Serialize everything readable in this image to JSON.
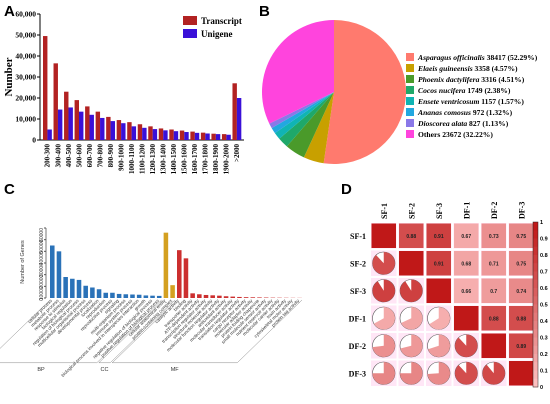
{
  "panel_letters": [
    "A",
    "B",
    "C",
    "D"
  ],
  "chart_data": [
    {
      "panel": "A",
      "type": "bar",
      "ylabel": "Number",
      "ylim": [
        0,
        60000
      ],
      "yticks": [
        "0",
        "10,000",
        "20,000",
        "30,000",
        "40,000",
        "50,000",
        "60,000"
      ],
      "legend_position": "top-right",
      "categories": [
        "200-300",
        "300-400",
        "400-500",
        "500-600",
        "600-700",
        "700-800",
        "800-900",
        "900-1000",
        "1000-1100",
        "1100-1200",
        "1200-1300",
        "1300-1400",
        "1400-1500",
        "1500-1600",
        "1600-1700",
        "1700-1800",
        "1800-1900",
        "1900-2000",
        ">2000"
      ],
      "series": [
        {
          "name": "Transcript",
          "color": "#b22222",
          "values": [
            49500,
            36500,
            23000,
            19000,
            16000,
            13500,
            11000,
            9500,
            8500,
            7500,
            6500,
            5500,
            5000,
            4500,
            4000,
            3500,
            3000,
            2800,
            27000
          ]
        },
        {
          "name": "Unigene",
          "color": "#3a10d8",
          "values": [
            5000,
            14500,
            15500,
            13500,
            12000,
            10500,
            9000,
            8000,
            6500,
            5800,
            5200,
            4600,
            4200,
            3800,
            3400,
            3100,
            2800,
            2500,
            20000
          ]
        }
      ]
    },
    {
      "panel": "B",
      "type": "pie",
      "slices": [
        {
          "species": "Asparagus officinalis",
          "count": "38417",
          "pct": "(52.29%)",
          "value": 52.29,
          "color": "#ff7a6e"
        },
        {
          "species": "Elaeis guineensis",
          "count": "3358",
          "pct": "(4.57%)",
          "value": 4.57,
          "color": "#c8a000"
        },
        {
          "species": "Phoenix dactylifera",
          "count": "3316",
          "pct": "(4.51%)",
          "value": 4.51,
          "color": "#4a9a2a"
        },
        {
          "species": "Cocos nucifera",
          "count": "1749",
          "pct": "(2.38%)",
          "value": 2.38,
          "color": "#1fa86a"
        },
        {
          "species": "Ensete ventricosum",
          "count": "1157",
          "pct": "(1.57%)",
          "value": 1.57,
          "color": "#10b4b4"
        },
        {
          "species": "Ananas comosus",
          "count": "972",
          "pct": "(1.32%)",
          "value": 1.32,
          "color": "#22a8e0"
        },
        {
          "species": "Dioscorea alata",
          "count": "827",
          "pct": "(1.13%)",
          "value": 1.13,
          "color": "#8a78e8"
        },
        {
          "species": "Others",
          "count": "23672",
          "pct": "(32.22%)",
          "value": 32.22,
          "color": "#ff44dd"
        }
      ]
    },
    {
      "panel": "C",
      "type": "bar",
      "ylabel": "Number of Genes",
      "ylim": [
        0,
        60000
      ],
      "yticks": [
        "0",
        "10000",
        "20000",
        "30000",
        "40000",
        "50000",
        "60000"
      ],
      "groups": [
        {
          "label": "BP",
          "start": 0,
          "end": 17
        },
        {
          "label": "CC",
          "start": 17,
          "end": 19
        },
        {
          "label": "MF",
          "start": 19,
          "end": 38
        }
      ],
      "categories": [
        "cellular process",
        "metabolic process",
        "response to stimulus",
        "biological regulation",
        "regulation of biological process",
        "multicellular organismal process",
        "developmental process",
        "localization",
        "reproduction",
        "reproductive process",
        "signaling",
        "multi-organism process",
        "immune system process",
        "biological process involved in interspecies interaction",
        "growth",
        "negative regulation of biological process",
        "positive regulation of biological process",
        "cellular anatomical entity",
        "protein-containing complex",
        "catalytic activity",
        "binding",
        "transporter activity",
        "ATP-dependent activity",
        "transcription regulator activity",
        "structural molecule activity",
        "molecular function regulator activity",
        "antioxidant activity",
        "molecular transducer activity",
        "translation regulator activity",
        "cargo receptor activity",
        "molecular adaptor activity",
        "protein folding chaperone",
        "small molecule sensor activity",
        "nutrient reservoir activity",
        "molecular carrier activity",
        "toxin activity",
        "cytoskeletal motor activity",
        "protein tag activity"
      ],
      "values": [
        45000,
        40000,
        18000,
        16500,
        15500,
        10500,
        9000,
        7500,
        4500,
        4500,
        3500,
        3200,
        3000,
        2800,
        2200,
        2000,
        1800,
        56000,
        11000,
        41000,
        34000,
        4000,
        3200,
        2600,
        2300,
        2000,
        1500,
        1200,
        900,
        700,
        600,
        500,
        400,
        300,
        250,
        200,
        150,
        120
      ],
      "colors": {
        "BP": "#2a72b8",
        "CC": "#d4a020",
        "MF": "#cc2f2f"
      }
    },
    {
      "panel": "D",
      "type": "heatmap",
      "labels": [
        "SF-1",
        "SF-2",
        "SF-3",
        "DF-1",
        "DF-2",
        "DF-3"
      ],
      "matrix": [
        [
          1,
          0.88,
          0.91,
          0.67,
          0.73,
          0.75
        ],
        [
          0.88,
          1,
          0.91,
          0.68,
          0.71,
          0.75
        ],
        [
          0.91,
          0.91,
          1,
          0.66,
          0.7,
          0.74
        ],
        [
          0.67,
          0.68,
          0.66,
          1,
          0.88,
          0.88
        ],
        [
          0.73,
          0.71,
          0.7,
          0.88,
          1,
          0.89
        ],
        [
          0.75,
          0.75,
          0.74,
          0.88,
          0.89,
          1
        ]
      ],
      "upper_labels": [
        [
          "",
          "0.88",
          "0.91",
          "0.67",
          "0.73",
          "0.75"
        ],
        [
          "",
          "",
          "0.91",
          "0.68",
          "0.71",
          "0.75"
        ],
        [
          "",
          "",
          "",
          "0.66",
          "0.7",
          "0.74"
        ],
        [
          "",
          "",
          "",
          "",
          "0.88",
          "0.88"
        ],
        [
          "",
          "",
          "",
          "",
          "",
          "0.89"
        ],
        [
          "",
          "",
          "",
          "",
          "",
          ""
        ]
      ],
      "colorbar_ticks": [
        "0",
        "0.1",
        "0.2",
        "0.3",
        "0.4",
        "0.5",
        "0.6",
        "0.7",
        "0.8",
        "0.9",
        "1"
      ],
      "color_low": "#ffc8c8",
      "color_high": "#c01818"
    }
  ]
}
